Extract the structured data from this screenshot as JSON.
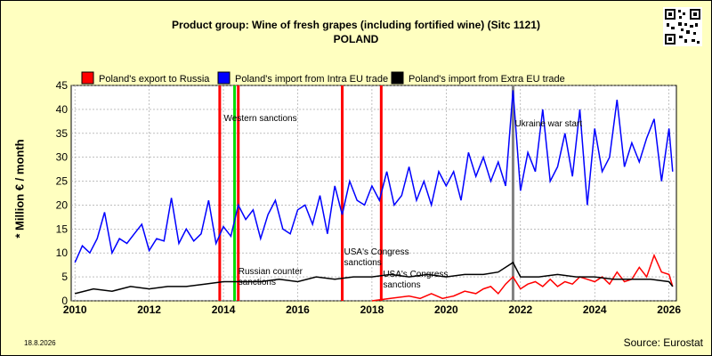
{
  "title": {
    "line1": "Product group: Wine of fresh grapes (including fortified wine) (Sitc 1121)",
    "line2": "POLAND"
  },
  "ylabel": "* Million € / month",
  "date_stamp": "18.8.2026",
  "source": "Source: Eurostat",
  "qr_icon": "qr-code-icon",
  "colors": {
    "background": "#ffffc0",
    "export_russia": "#ff0000",
    "import_intra": "#0000ff",
    "import_extra": "#000000",
    "sanction_event": "#ff0000",
    "western_sanctions": "#00dd00",
    "ukraine_war": "#808080"
  },
  "chart_data": {
    "type": "line",
    "title": "Product group: Wine of fresh grapes (including fortified wine) (Sitc 1121)",
    "subtitle": "POLAND",
    "ylabel": "* Million € / month",
    "xlim": [
      2009.9,
      2026.2
    ],
    "ylim": [
      0,
      45
    ],
    "yticks": [
      0,
      5,
      10,
      15,
      20,
      25,
      30,
      35,
      40,
      45
    ],
    "xticks": [
      2010,
      2012,
      2014,
      2016,
      2018,
      2020,
      2022,
      2024,
      2026
    ],
    "grid": true,
    "legend_placement": "top",
    "series": [
      {
        "name": "Poland's export to Russia",
        "color": "#ff0000",
        "x": [
          2018.0,
          2018.5,
          2019.0,
          2019.3,
          2019.6,
          2019.9,
          2020.2,
          2020.5,
          2020.8,
          2021.0,
          2021.2,
          2021.4,
          2021.6,
          2021.8,
          2022.0,
          2022.2,
          2022.4,
          2022.6,
          2022.8,
          2023.0,
          2023.2,
          2023.4,
          2023.6,
          2023.8,
          2024.0,
          2024.2,
          2024.4,
          2024.6,
          2024.8,
          2025.0,
          2025.2,
          2025.4,
          2025.6,
          2025.8,
          2026.0,
          2026.1
        ],
        "values": [
          0,
          0.5,
          1,
          0.5,
          1.5,
          0.5,
          1,
          2,
          1.5,
          2.5,
          3,
          1.5,
          3.5,
          5,
          2.5,
          3.5,
          4,
          3,
          4.5,
          3,
          4,
          3.5,
          5,
          4.5,
          4,
          5,
          3.5,
          6,
          4,
          4.5,
          7,
          5,
          9.5,
          6,
          5.5,
          3
        ]
      },
      {
        "name": "Poland's import from Intra EU trade",
        "color": "#0000ff",
        "x": [
          2010.0,
          2010.2,
          2010.4,
          2010.6,
          2010.8,
          2011.0,
          2011.2,
          2011.4,
          2011.6,
          2011.8,
          2012.0,
          2012.2,
          2012.4,
          2012.6,
          2012.8,
          2013.0,
          2013.2,
          2013.4,
          2013.6,
          2013.8,
          2014.0,
          2014.2,
          2014.4,
          2014.6,
          2014.8,
          2015.0,
          2015.2,
          2015.4,
          2015.6,
          2015.8,
          2016.0,
          2016.2,
          2016.4,
          2016.6,
          2016.8,
          2017.0,
          2017.2,
          2017.4,
          2017.6,
          2017.8,
          2018.0,
          2018.2,
          2018.4,
          2018.6,
          2018.8,
          2019.0,
          2019.2,
          2019.4,
          2019.6,
          2019.8,
          2020.0,
          2020.2,
          2020.4,
          2020.6,
          2020.8,
          2021.0,
          2021.2,
          2021.4,
          2021.6,
          2021.8,
          2022.0,
          2022.2,
          2022.4,
          2022.6,
          2022.8,
          2023.0,
          2023.2,
          2023.4,
          2023.6,
          2023.8,
          2024.0,
          2024.2,
          2024.4,
          2024.6,
          2024.8,
          2025.0,
          2025.2,
          2025.4,
          2025.6,
          2025.8,
          2026.0,
          2026.1
        ],
        "values": [
          8,
          11.5,
          10,
          13,
          18.5,
          10,
          13,
          12,
          14,
          16,
          10.5,
          13,
          12.5,
          21.5,
          12,
          15,
          12.5,
          14,
          21,
          12,
          15.5,
          13.5,
          20,
          17,
          19,
          13,
          18,
          21,
          15,
          14,
          19,
          20,
          16,
          22,
          14,
          24,
          18,
          25,
          21,
          20,
          24,
          21,
          27,
          20,
          22,
          28,
          21,
          25,
          20,
          27,
          24,
          27,
          21,
          31,
          26,
          30,
          25,
          29,
          24,
          44,
          23,
          31,
          27,
          40,
          25,
          28,
          35,
          26,
          40,
          20,
          36,
          27,
          30,
          42,
          28,
          33,
          29,
          34,
          38,
          25,
          36,
          27
        ]
      },
      {
        "name": "Poland's import from Extra EU trade",
        "color": "#000000",
        "x": [
          2010.0,
          2010.5,
          2011.0,
          2011.5,
          2012.0,
          2012.5,
          2013.0,
          2013.5,
          2014.0,
          2014.5,
          2015.0,
          2015.5,
          2016.0,
          2016.5,
          2017.0,
          2017.5,
          2018.0,
          2018.5,
          2019.0,
          2019.5,
          2020.0,
          2020.5,
          2021.0,
          2021.4,
          2021.8,
          2022.0,
          2022.5,
          2023.0,
          2023.5,
          2024.0,
          2024.5,
          2025.0,
          2025.5,
          2026.0,
          2026.1
        ],
        "values": [
          1.5,
          2.5,
          2,
          3,
          2.5,
          3,
          3,
          3.5,
          4,
          4,
          4,
          4.5,
          4,
          5,
          4.5,
          5,
          5,
          5.5,
          5,
          5.5,
          5,
          5.5,
          5.5,
          6,
          8,
          5,
          5,
          5.5,
          5,
          5,
          4.5,
          4.5,
          4.5,
          4,
          3
        ]
      }
    ],
    "events": [
      {
        "x": 2013.9,
        "color": "#ff0000",
        "label": ""
      },
      {
        "x": 2014.3,
        "color": "#00dd00",
        "label": "Western sanctions"
      },
      {
        "x": 2014.4,
        "color": "#ff0000",
        "label": "Russian counter sanctions"
      },
      {
        "x": 2017.2,
        "color": "#ff0000",
        "label": "USA's Congress sanctions"
      },
      {
        "x": 2018.25,
        "color": "#ff0000",
        "label": "USA's Congress sanctions"
      },
      {
        "x": 2021.8,
        "color": "#808080",
        "label": "Ukraine war start"
      }
    ]
  }
}
